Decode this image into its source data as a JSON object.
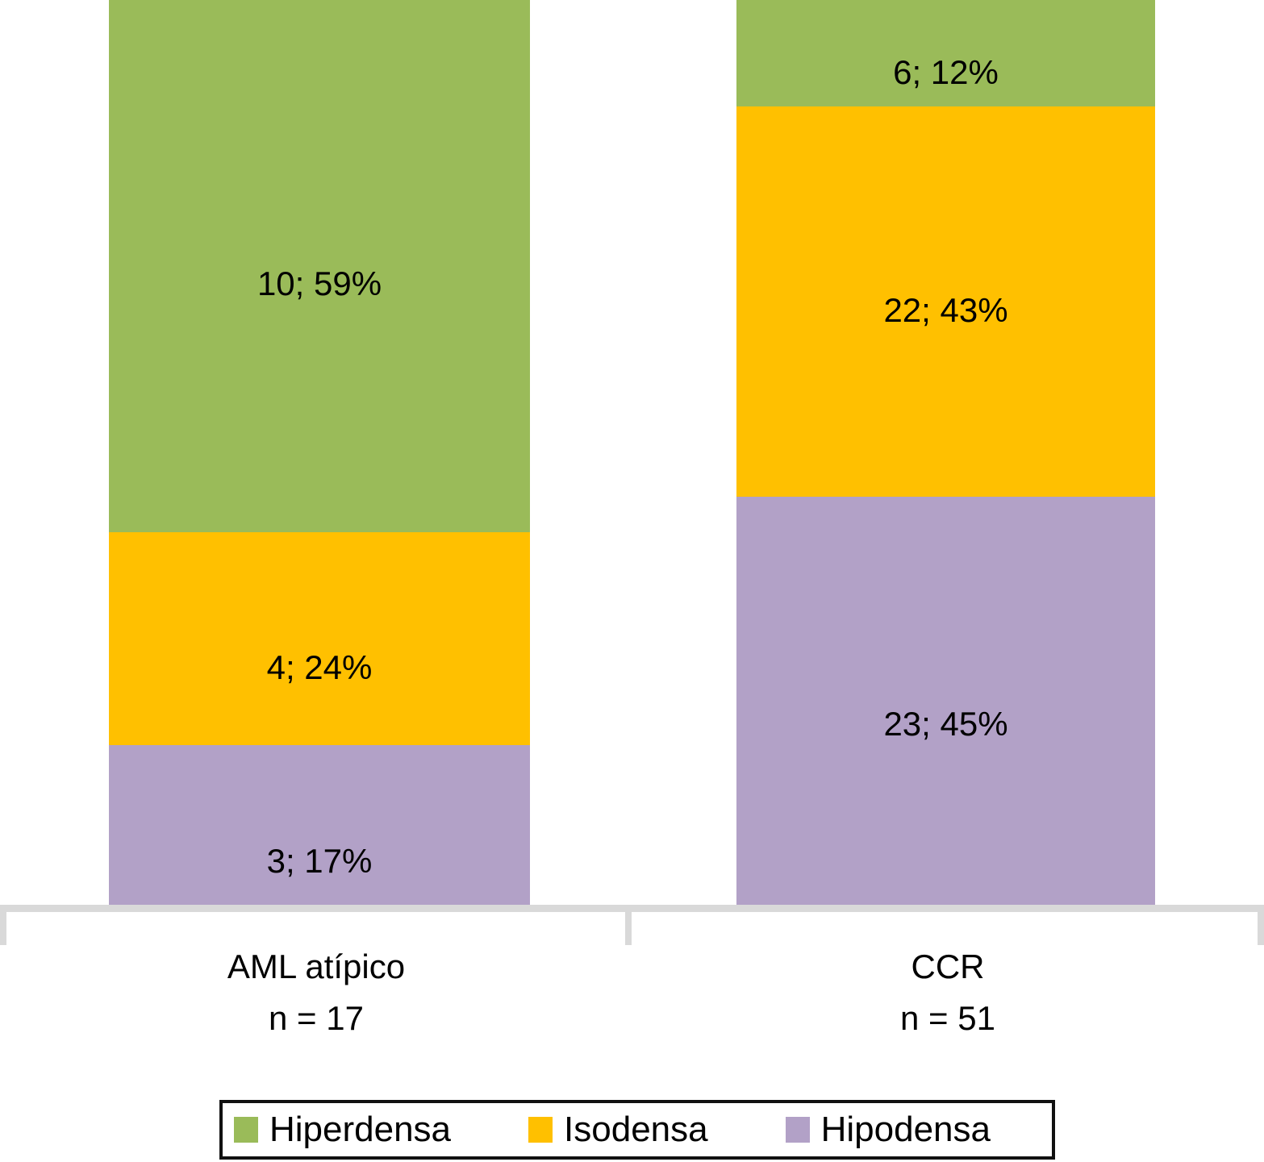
{
  "chart_data": {
    "type": "bar",
    "subtype": "stacked-100-percent-column",
    "title": "",
    "xlabel": "",
    "ylabel": "",
    "grid": false,
    "legend_position": "bottom",
    "axis_color": "#d9d9d9",
    "background_color": "#ffffff",
    "categories": [
      {
        "label": "AML atípico",
        "sublabel": "n = 17",
        "total": 17
      },
      {
        "label": "CCR",
        "sublabel": "n = 51",
        "total": 51
      }
    ],
    "series": [
      {
        "name": "Hiperdensa",
        "color": "#9ABB59",
        "values": [
          10,
          6
        ],
        "percents": [
          59,
          12
        ],
        "labels": [
          "10; 59%",
          "6; 12%"
        ]
      },
      {
        "name": "Isodensa",
        "color": "#FFC000",
        "values": [
          4,
          22
        ],
        "percents": [
          24,
          43
        ],
        "labels": [
          "4; 24%",
          "22; 43%"
        ]
      },
      {
        "name": "Hipodensa",
        "color": "#B2A1C7",
        "values": [
          3,
          23
        ],
        "percents": [
          17,
          45
        ],
        "labels": [
          "3; 17%",
          "23; 45%"
        ]
      }
    ]
  }
}
